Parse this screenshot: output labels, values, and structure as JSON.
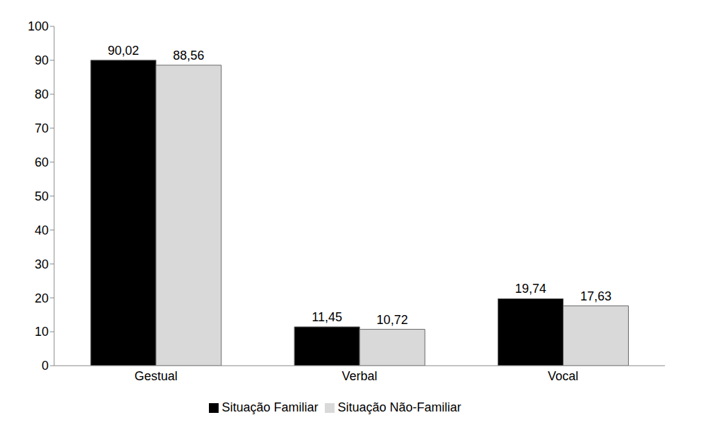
{
  "chart_data": {
    "type": "bar",
    "categories": [
      "Gestual",
      "Verbal",
      "Vocal"
    ],
    "series": [
      {
        "name": "Situação Familiar",
        "color": "#000000",
        "values": [
          90.02,
          11.45,
          19.74
        ],
        "value_labels": [
          "90,02",
          "11,45",
          "19,74"
        ]
      },
      {
        "name": "Situação Não-Familiar",
        "color": "#d9d9d9",
        "values": [
          88.56,
          10.72,
          17.63
        ],
        "value_labels": [
          "88,56",
          "10,72",
          "17,63"
        ]
      }
    ],
    "ylim": [
      0,
      100
    ],
    "yticks": [
      0,
      10,
      20,
      30,
      40,
      50,
      60,
      70,
      80,
      90,
      100
    ],
    "grid": false,
    "legend": "bottom",
    "data_labels": true
  }
}
